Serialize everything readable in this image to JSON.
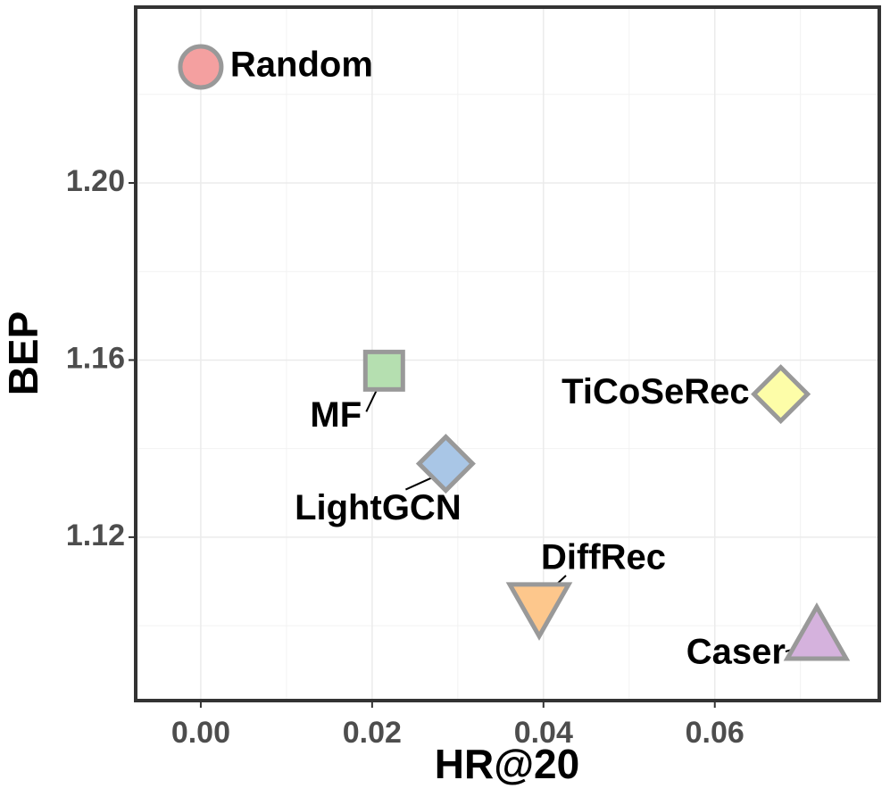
{
  "chart_data": {
    "type": "scatter",
    "xlabel": "HR@20",
    "ylabel": "BEP",
    "xlim": [
      -0.0076,
      0.0792
    ],
    "ylim": [
      1.0831,
      1.2397
    ],
    "xticks": [
      {
        "value": 0,
        "label": "0.00"
      },
      0.02,
      0.04,
      0.06
    ],
    "yticks": [
      {
        "value": 1.12,
        "label": "1.12"
      },
      1.16,
      {
        "value": 1.2,
        "label": "1.20"
      }
    ],
    "grid": true,
    "series": [
      {
        "name": "Random",
        "color": "#f4a0a0",
        "shape": "circle",
        "x": [
          0.0
        ],
        "values": [
          1.2262
        ]
      },
      {
        "name": "MF",
        "color": "#b5dfb0",
        "shape": "square",
        "x": [
          0.0214
        ],
        "values": [
          1.1576
        ]
      },
      {
        "name": "LightGCN",
        "color": "#a9c6e6",
        "shape": "diamond",
        "x": [
          0.0286
        ],
        "values": [
          1.1366
        ]
      },
      {
        "name": "TiCoSeRec",
        "color": "#fdfda8",
        "shape": "diamond",
        "x": [
          0.0677
        ],
        "values": [
          1.1523
        ]
      },
      {
        "name": "DiffRec",
        "color": "#fdc78c",
        "shape": "triangle-down",
        "x": [
          0.0395
        ],
        "values": [
          1.1053
        ]
      },
      {
        "name": "Caser",
        "color": "#d5b2dd",
        "shape": "triangle-up",
        "x": [
          0.0719
        ],
        "values": [
          1.0966
        ]
      }
    ]
  }
}
